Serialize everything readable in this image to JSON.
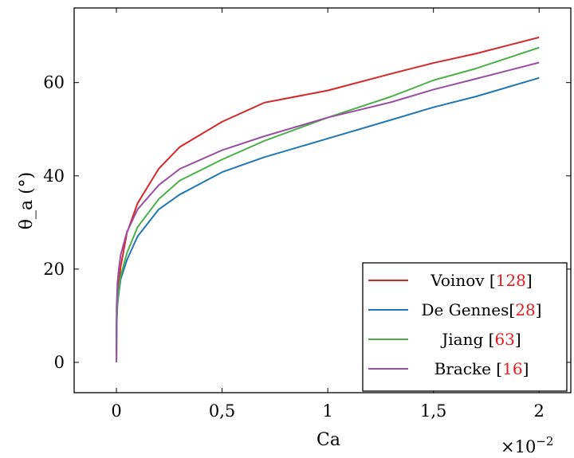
{
  "chart_data": {
    "type": "line",
    "xlabel": "Ca",
    "ylabel": "θ_a (°)",
    "x_multiplier": "×10",
    "x_multiplier_exp": "−2",
    "xlim": [
      -0.2,
      2.15
    ],
    "ylim": [
      -6.5,
      76
    ],
    "x_ticks": [
      0,
      0.5,
      1,
      1.5,
      2
    ],
    "x_tick_labels": [
      "0",
      "0,5",
      "1",
      "1,5",
      "2"
    ],
    "y_ticks": [
      0,
      20,
      40,
      60
    ],
    "y_tick_labels": [
      "0",
      "20",
      "40",
      "60"
    ],
    "grid": false,
    "legend_position": "bottom-right",
    "series": [
      {
        "name": "Voinov",
        "ref": "128",
        "color": "#d62728",
        "x": [
          0,
          0.001,
          0.005,
          0.01,
          0.02,
          0.05,
          0.1,
          0.2,
          0.3,
          0.5,
          0.7,
          1.0,
          1.3,
          1.5,
          1.7,
          2.0
        ],
        "y": [
          0,
          8.8,
          13.3,
          16.4,
          20.5,
          27.8,
          34.1,
          41.5,
          46.2,
          51.6,
          55.7,
          58.3,
          61.9,
          64.2,
          66.2,
          69.7
        ]
      },
      {
        "name": "De Gennes",
        "ref": "28",
        "color": "#1f77b4",
        "x": [
          0,
          0.001,
          0.005,
          0.01,
          0.02,
          0.05,
          0.1,
          0.2,
          0.3,
          0.5,
          0.7,
          1.0,
          1.3,
          1.5,
          1.7,
          2.0
        ],
        "y": [
          0,
          7.8,
          12.4,
          14.4,
          17.8,
          22.0,
          27.0,
          32.8,
          36.0,
          40.8,
          44.0,
          48.0,
          52.0,
          54.7,
          57.0,
          61.0
        ]
      },
      {
        "name": "Jiang",
        "ref": "63",
        "color": "#4daf4a",
        "x": [
          0,
          0.001,
          0.005,
          0.01,
          0.02,
          0.05,
          0.1,
          0.2,
          0.3,
          0.5,
          0.7,
          1.0,
          1.3,
          1.5,
          1.7,
          2.0
        ],
        "y": [
          0,
          8.5,
          13.2,
          15.1,
          18.5,
          23.5,
          29.0,
          35.0,
          39.0,
          43.5,
          47.5,
          52.5,
          57.0,
          60.5,
          63.0,
          67.5
        ]
      },
      {
        "name": "Bracke",
        "ref": "16",
        "color": "#984ea3",
        "x": [
          0,
          0.001,
          0.005,
          0.01,
          0.02,
          0.05,
          0.1,
          0.2,
          0.3,
          0.5,
          0.7,
          1.0,
          1.3,
          1.5,
          1.7,
          2.0
        ],
        "y": [
          0,
          12.0,
          17.0,
          19.5,
          23.0,
          28.0,
          32.8,
          38.0,
          41.5,
          45.5,
          48.5,
          52.5,
          55.8,
          58.5,
          60.8,
          64.3
        ]
      }
    ]
  }
}
